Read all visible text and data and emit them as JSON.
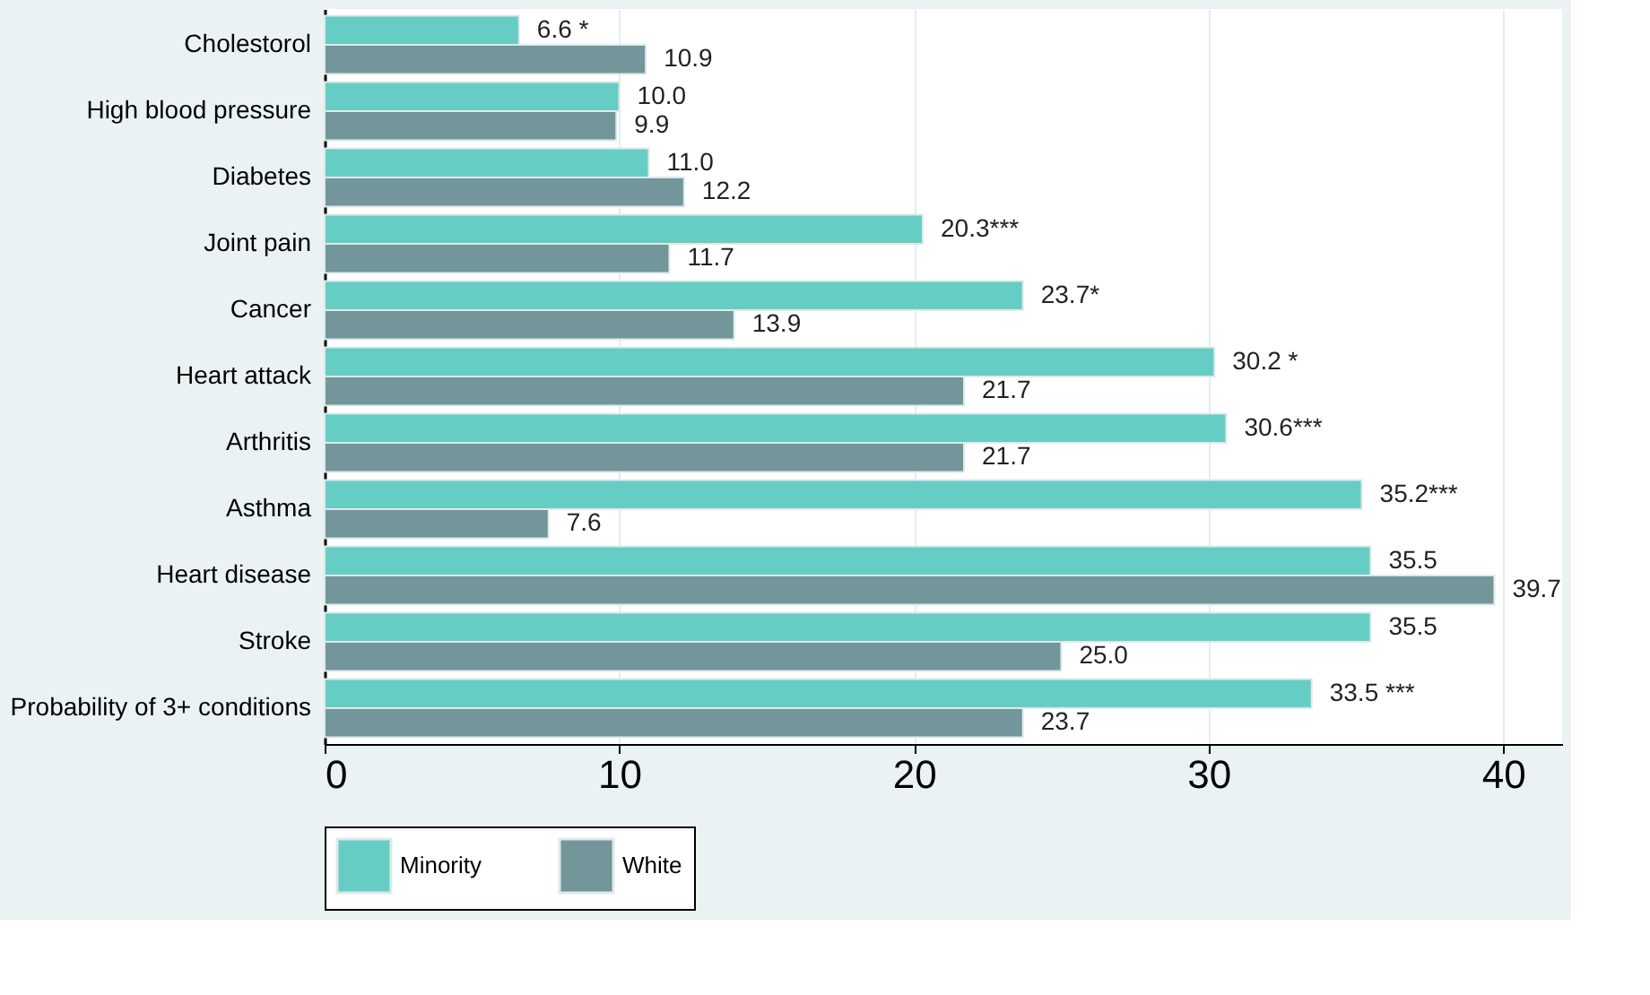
{
  "chart_data": {
    "type": "bar",
    "orientation": "horizontal",
    "categories": [
      "Cholestorol",
      "High blood pressure",
      "Diabetes",
      "Joint pain",
      "Cancer",
      "Heart attack",
      "Arthritis",
      "Asthma",
      "Heart disease",
      "Stroke",
      "Probability of 3+ conditions"
    ],
    "series": [
      {
        "name": "Minority",
        "color": "#66cdc4",
        "values": [
          6.6,
          10.0,
          11.0,
          20.3,
          23.7,
          30.2,
          30.6,
          35.2,
          35.5,
          35.5,
          33.5
        ],
        "value_labels": [
          "6.6 *",
          "10.0",
          "11.0",
          "20.3***",
          "23.7*",
          "30.2 *",
          "30.6***",
          "35.2***",
          "35.5",
          "35.5",
          "33.5 ***"
        ]
      },
      {
        "name": "White",
        "color": "#72969a",
        "values": [
          10.9,
          9.9,
          12.2,
          11.7,
          13.9,
          21.7,
          21.7,
          7.6,
          39.7,
          25.0,
          23.7
        ],
        "value_labels": [
          "10.9",
          "9.9",
          "12.2",
          "11.7",
          "13.9",
          "21.7",
          "21.7",
          "7.6",
          "39.7",
          "25.0",
          "23.7"
        ]
      }
    ],
    "xlim": [
      0,
      42
    ],
    "xticks": [
      0,
      10,
      20,
      30,
      40
    ],
    "grid": "x",
    "legend": "bottom"
  }
}
